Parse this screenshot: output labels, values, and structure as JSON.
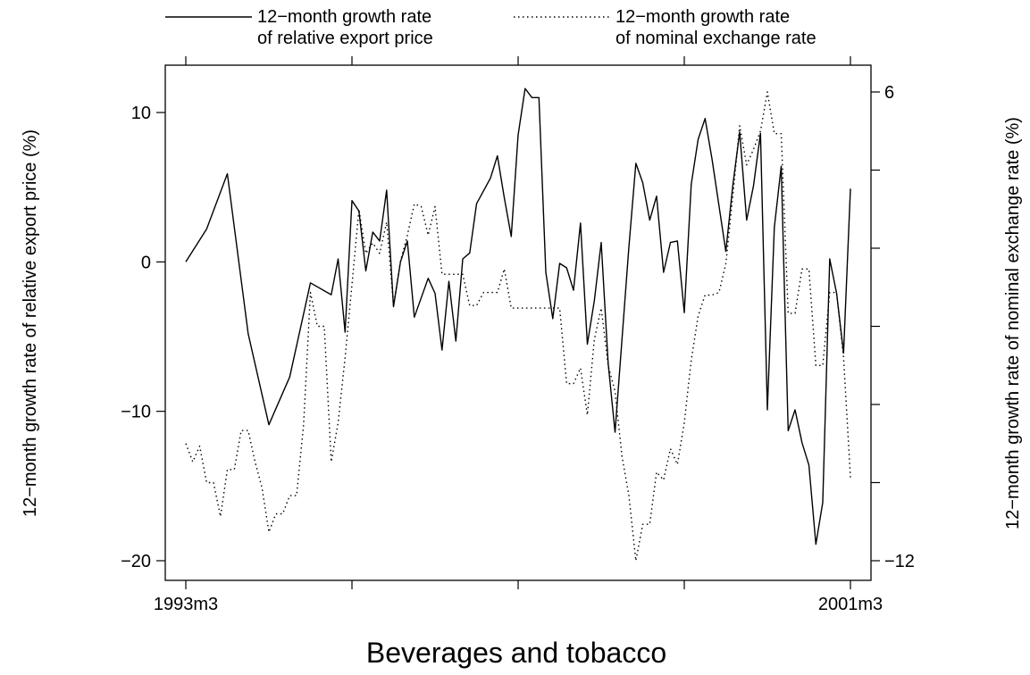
{
  "chart_data": {
    "type": "line",
    "title": "Beverages and tobacco",
    "xlabel": "",
    "ylabel_left": "12−month growth rate of relative export price (%)",
    "ylabel_right": "12−month growth rate of nominal exchange rate (%)",
    "x_tick_labels": [
      "1993m3",
      "2001m3"
    ],
    "x_range": [
      0,
      96
    ],
    "y_left_range": [
      -21,
      13
    ],
    "y_left_ticks": [
      10,
      0,
      -10,
      -20
    ],
    "y_left_tick_labels": [
      "10",
      "0",
      "−10",
      "−20"
    ],
    "y_right_range": [
      -12.3,
      7.3
    ],
    "y_right_ticks": [
      6,
      3,
      0,
      -3,
      -6,
      -9,
      -12
    ],
    "y_right_tick_labels": [
      "6",
      "",
      "",
      "",
      "",
      "",
      "−12"
    ],
    "legend_position": "top",
    "grid": false,
    "series": [
      {
        "name": "12−month growth rate\nof relative export price",
        "axis": "left",
        "style": "solid",
        "color": "#000000",
        "points": [
          [
            0,
            0
          ],
          [
            3,
            2.2
          ],
          [
            6,
            5.9
          ],
          [
            9,
            -4.8
          ],
          [
            12,
            -10.9
          ],
          [
            15,
            -7.7
          ],
          [
            18,
            -1.4
          ],
          [
            21,
            -2.2
          ],
          [
            22,
            0.2
          ],
          [
            23,
            -4.7
          ],
          [
            24,
            4.1
          ],
          [
            25,
            3.4
          ],
          [
            26,
            -0.6
          ],
          [
            27,
            2.0
          ],
          [
            28,
            1.4
          ],
          [
            29,
            4.8
          ],
          [
            30,
            -3.0
          ],
          [
            31,
            0.0
          ],
          [
            32,
            1.4
          ],
          [
            33,
            -3.7
          ],
          [
            35,
            -1.1
          ],
          [
            36,
            -2.1
          ],
          [
            37,
            -5.9
          ],
          [
            38,
            -1.3
          ],
          [
            39,
            -5.3
          ],
          [
            40,
            0.2
          ],
          [
            41,
            0.6
          ],
          [
            42,
            3.9
          ],
          [
            44,
            5.6
          ],
          [
            45,
            7.1
          ],
          [
            46,
            4.3
          ],
          [
            47,
            1.7
          ],
          [
            48,
            8.5
          ],
          [
            49,
            11.6
          ],
          [
            50,
            11.0
          ],
          [
            51,
            11.0
          ],
          [
            52,
            -0.7
          ],
          [
            53,
            -3.8
          ],
          [
            54,
            -0.1
          ],
          [
            55,
            -0.4
          ],
          [
            56,
            -1.9
          ],
          [
            57,
            2.6
          ],
          [
            58,
            -5.5
          ],
          [
            59,
            -2.6
          ],
          [
            60,
            1.3
          ],
          [
            61,
            -6.8
          ],
          [
            62,
            -11.4
          ],
          [
            64,
            1.0
          ],
          [
            65,
            6.6
          ],
          [
            66,
            5.3
          ],
          [
            67,
            2.8
          ],
          [
            68,
            4.4
          ],
          [
            69,
            -0.7
          ],
          [
            70,
            1.3
          ],
          [
            71,
            1.4
          ],
          [
            72,
            -3.4
          ],
          [
            73,
            5.2
          ],
          [
            74,
            8.2
          ],
          [
            75,
            9.6
          ],
          [
            76,
            6.9
          ],
          [
            78,
            0.7
          ],
          [
            79,
            5.1
          ],
          [
            80,
            8.7
          ],
          [
            81,
            2.8
          ],
          [
            82,
            5.1
          ],
          [
            83,
            8.6
          ],
          [
            84,
            -9.9
          ],
          [
            85,
            2.3
          ],
          [
            86,
            6.4
          ],
          [
            87,
            -11.3
          ],
          [
            88,
            -9.9
          ],
          [
            89,
            -12.1
          ],
          [
            90,
            -13.6
          ],
          [
            91,
            -18.9
          ],
          [
            92,
            -16.1
          ],
          [
            93,
            0.2
          ],
          [
            94,
            -2.1
          ],
          [
            95,
            -6.1
          ],
          [
            96,
            4.9
          ]
        ]
      },
      {
        "name": "12−month growth rate\nof nominal exchange rate",
        "axis": "right",
        "style": "dotted",
        "color": "#000000",
        "points": [
          [
            0,
            -7.5
          ],
          [
            1,
            -8.2
          ],
          [
            2,
            -7.6
          ],
          [
            3,
            -9.0
          ],
          [
            4,
            -9.0
          ],
          [
            5,
            -10.3
          ],
          [
            6,
            -8.5
          ],
          [
            7,
            -8.5
          ],
          [
            8,
            -7.0
          ],
          [
            9,
            -7.0
          ],
          [
            10,
            -8.2
          ],
          [
            11,
            -9.2
          ],
          [
            12,
            -10.9
          ],
          [
            13,
            -10.2
          ],
          [
            14,
            -10.2
          ],
          [
            15,
            -9.5
          ],
          [
            16,
            -9.5
          ],
          [
            17,
            -6.8
          ],
          [
            18,
            -1.7
          ],
          [
            19,
            -3.0
          ],
          [
            20,
            -3.0
          ],
          [
            21,
            -8.2
          ],
          [
            22,
            -6.7
          ],
          [
            23,
            -4.2
          ],
          [
            24,
            -1.4
          ],
          [
            25,
            1.5
          ],
          [
            26,
            -0.2
          ],
          [
            27,
            0.2
          ],
          [
            28,
            -0.2
          ],
          [
            29,
            1.0
          ],
          [
            30,
            -2.2
          ],
          [
            31,
            -0.5
          ],
          [
            32,
            0.5
          ],
          [
            33,
            1.7
          ],
          [
            34,
            1.6
          ],
          [
            35,
            0.5
          ],
          [
            36,
            1.6
          ],
          [
            37,
            -1.0
          ],
          [
            38,
            -1.0
          ],
          [
            39,
            -1.0
          ],
          [
            40,
            -1.0
          ],
          [
            41,
            -2.2
          ],
          [
            42,
            -2.2
          ],
          [
            43,
            -1.7
          ],
          [
            44,
            -1.7
          ],
          [
            45,
            -1.7
          ],
          [
            46,
            -0.8
          ],
          [
            47,
            -2.3
          ],
          [
            48,
            -2.3
          ],
          [
            50,
            -2.3
          ],
          [
            52,
            -2.3
          ],
          [
            53,
            -2.3
          ],
          [
            54,
            -2.3
          ],
          [
            55,
            -5.2
          ],
          [
            56,
            -5.2
          ],
          [
            57,
            -4.6
          ],
          [
            58,
            -6.4
          ],
          [
            59,
            -3.5
          ],
          [
            60,
            -2.3
          ],
          [
            61,
            -4.5
          ],
          [
            62,
            -5.5
          ],
          [
            63,
            -8.0
          ],
          [
            64,
            -9.5
          ],
          [
            65,
            -12.0
          ],
          [
            66,
            -10.6
          ],
          [
            67,
            -10.6
          ],
          [
            68,
            -8.6
          ],
          [
            69,
            -8.9
          ],
          [
            70,
            -7.7
          ],
          [
            71,
            -8.3
          ],
          [
            72,
            -6.7
          ],
          [
            73,
            -4.3
          ],
          [
            74,
            -2.6
          ],
          [
            75,
            -1.8
          ],
          [
            76,
            -1.8
          ],
          [
            77,
            -1.7
          ],
          [
            78,
            -0.6
          ],
          [
            79,
            2.0
          ],
          [
            80,
            4.7
          ],
          [
            81,
            3.2
          ],
          [
            82,
            3.8
          ],
          [
            83,
            4.5
          ],
          [
            84,
            6.0
          ],
          [
            85,
            4.4
          ],
          [
            86,
            4.4
          ],
          [
            87,
            -2.5
          ],
          [
            88,
            -2.5
          ],
          [
            89,
            -0.8
          ],
          [
            90,
            -0.8
          ],
          [
            91,
            -4.5
          ],
          [
            92,
            -4.5
          ],
          [
            93,
            -1.7
          ],
          [
            94,
            -1.7
          ],
          [
            95,
            -4.2
          ],
          [
            96,
            -8.8
          ]
        ]
      }
    ]
  }
}
